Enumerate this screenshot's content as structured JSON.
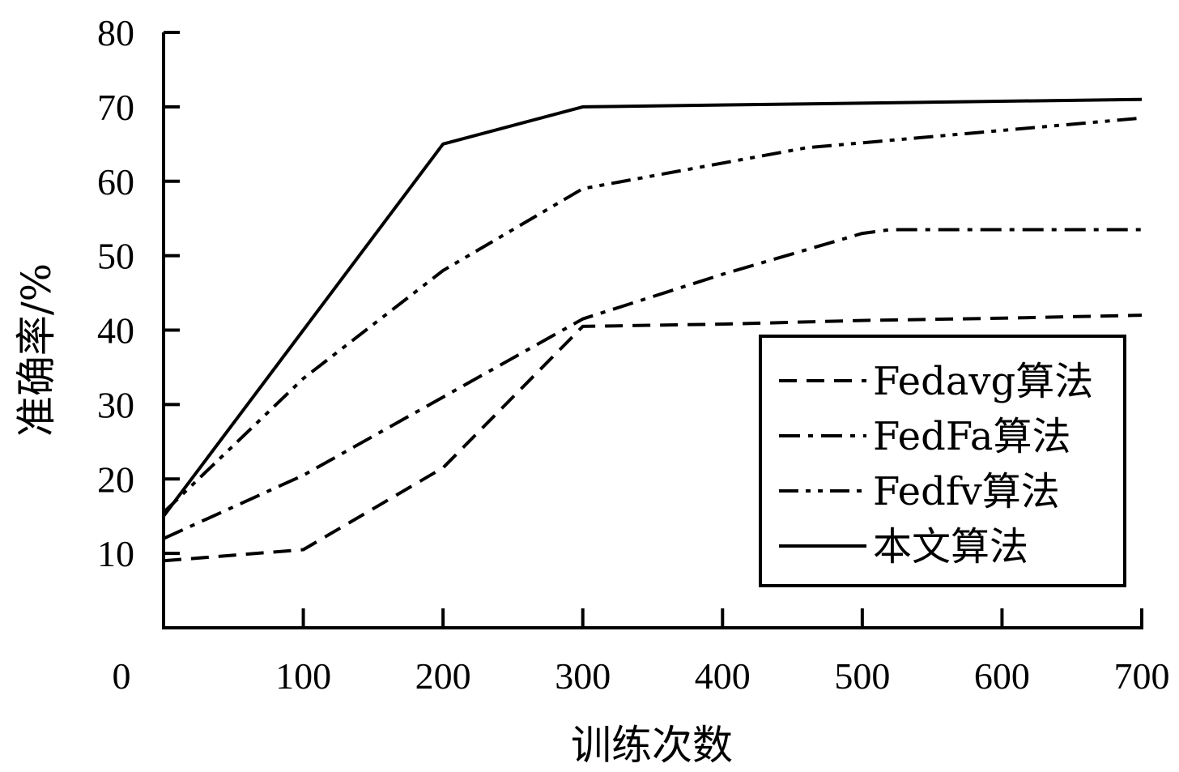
{
  "chart_data": {
    "type": "line",
    "title": "",
    "xlabel": "训练次数",
    "ylabel": "准确率/%",
    "xlim": [
      0,
      700
    ],
    "ylim": [
      0,
      80
    ],
    "x_ticks": [
      0,
      100,
      200,
      300,
      400,
      500,
      600,
      700
    ],
    "y_ticks": [
      10,
      20,
      30,
      40,
      50,
      60,
      70,
      80
    ],
    "grid": false,
    "legend_position": "bottom-right",
    "series": [
      {
        "name": "Fedavg算法",
        "dash": "dashed",
        "points": [
          [
            0,
            9
          ],
          [
            100,
            10.5
          ],
          [
            200,
            21.5
          ],
          [
            300,
            40.5
          ],
          [
            400,
            40.8
          ],
          [
            500,
            41.3
          ],
          [
            600,
            41.6
          ],
          [
            700,
            42
          ]
        ]
      },
      {
        "name": "FedFa算法",
        "dash": "dash-dot",
        "points": [
          [
            0,
            12
          ],
          [
            100,
            20.5
          ],
          [
            200,
            31
          ],
          [
            300,
            41.5
          ],
          [
            400,
            47.5
          ],
          [
            500,
            53
          ],
          [
            520,
            53.5
          ],
          [
            700,
            53.5
          ]
        ]
      },
      {
        "name": "Fedfv算法",
        "dash": "dash-dot-dot",
        "points": [
          [
            0,
            15.5
          ],
          [
            100,
            33.5
          ],
          [
            200,
            48
          ],
          [
            300,
            59
          ],
          [
            460,
            64.5
          ],
          [
            700,
            68.5
          ]
        ]
      },
      {
        "name": "本文算法",
        "dash": "solid",
        "points": [
          [
            0,
            15
          ],
          [
            100,
            40
          ],
          [
            200,
            65
          ],
          [
            300,
            70
          ],
          [
            700,
            71
          ]
        ]
      }
    ]
  }
}
